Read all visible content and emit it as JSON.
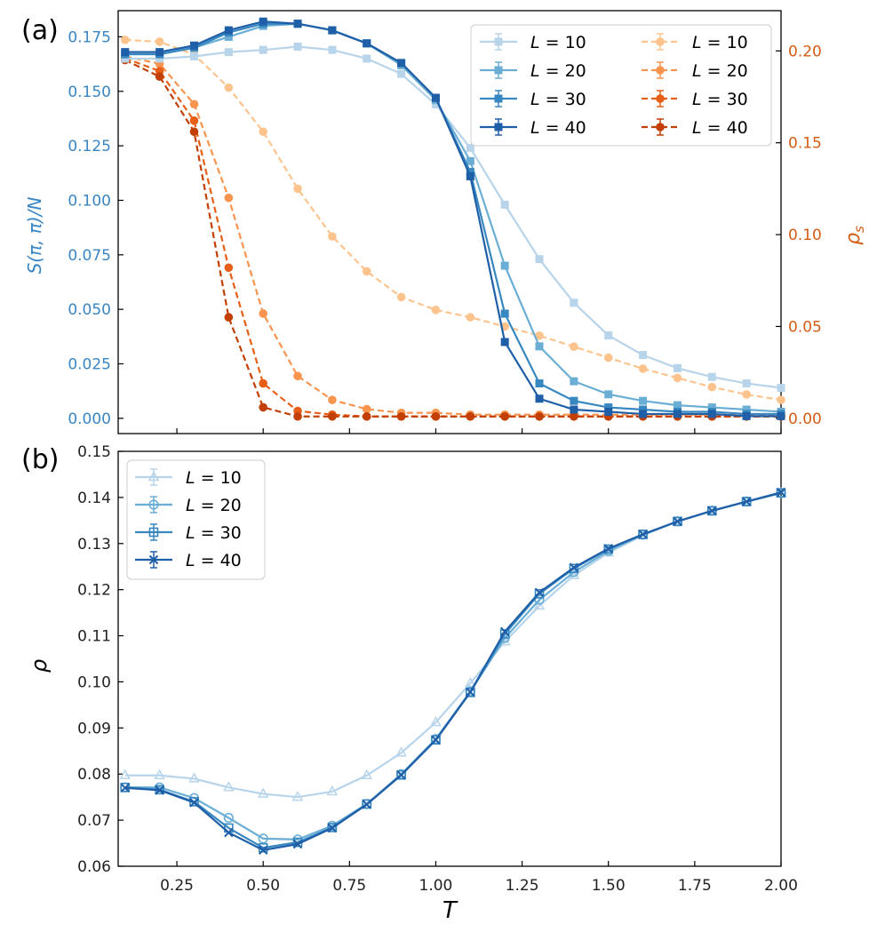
{
  "panel_labels": {
    "a": "(a)",
    "b": "(b)"
  },
  "colors": {
    "blue": [
      "#b7d4ea",
      "#6aaed6",
      "#3787c0",
      "#1f5fa8"
    ],
    "orange": [
      "#fdc38d",
      "#f9944f",
      "#e75f16",
      "#c23f06"
    ],
    "left_axis": "#3a86c4",
    "right_axis": "#d35d14"
  },
  "chart_data": [
    {
      "type": "line",
      "panel": "(a)",
      "xlim": [
        0.08,
        2.0
      ],
      "xticks": [
        0.25,
        0.5,
        0.75,
        1.0,
        1.25,
        1.5,
        1.75,
        2.0
      ],
      "left_axis": {
        "label": "S(π, π)/N",
        "ylim": [
          -0.007,
          0.187
        ],
        "ticks": [
          0.0,
          0.025,
          0.05,
          0.075,
          0.1,
          0.125,
          0.15,
          0.175
        ],
        "tick_labels": [
          "0.000",
          "0.025",
          "0.050",
          "0.075",
          "0.100",
          "0.125",
          "0.150",
          "0.175"
        ]
      },
      "right_axis": {
        "label": "ρ",
        "label_sub": "s",
        "ylim": [
          -0.0083,
          0.2219
        ],
        "ticks": [
          0.0,
          0.05,
          0.1,
          0.15,
          0.2
        ],
        "tick_labels": [
          "0.00",
          "0.05",
          "0.10",
          "0.15",
          "0.20"
        ]
      },
      "x": [
        0.1,
        0.2,
        0.3,
        0.4,
        0.5,
        0.6,
        0.7,
        0.8,
        0.9,
        1.0,
        1.1,
        1.2,
        1.3,
        1.4,
        1.5,
        1.6,
        1.7,
        1.8,
        1.9,
        2.0
      ],
      "legend": {
        "position": "top-right",
        "columns": 2
      },
      "series_left": [
        {
          "name": "L = 10",
          "L": "10",
          "values": [
            0.165,
            0.165,
            0.166,
            0.168,
            0.169,
            0.1705,
            0.169,
            0.165,
            0.158,
            0.144,
            0.124,
            0.098,
            0.073,
            0.053,
            0.038,
            0.029,
            0.023,
            0.019,
            0.016,
            0.014
          ]
        },
        {
          "name": "L = 20",
          "L": "20",
          "values": [
            0.167,
            0.167,
            0.17,
            0.175,
            0.18,
            0.181,
            0.178,
            0.172,
            0.162,
            0.146,
            0.118,
            0.07,
            0.033,
            0.017,
            0.011,
            0.008,
            0.006,
            0.005,
            0.004,
            0.003
          ]
        },
        {
          "name": "L = 30",
          "L": "30",
          "values": [
            0.167,
            0.167,
            0.17,
            0.177,
            0.181,
            0.181,
            0.178,
            0.172,
            0.163,
            0.147,
            0.113,
            0.048,
            0.016,
            0.008,
            0.005,
            0.004,
            0.003,
            0.003,
            0.002,
            0.002
          ]
        },
        {
          "name": "L = 40",
          "L": "40",
          "values": [
            0.168,
            0.168,
            0.171,
            0.178,
            0.182,
            0.181,
            0.178,
            0.172,
            0.163,
            0.147,
            0.111,
            0.035,
            0.009,
            0.004,
            0.003,
            0.002,
            0.002,
            0.002,
            0.001,
            0.001
          ]
        }
      ],
      "series_right": [
        {
          "name": "L = 10",
          "L": "10",
          "values": [
            0.206,
            0.205,
            0.198,
            0.18,
            0.156,
            0.125,
            0.099,
            0.08,
            0.066,
            0.059,
            0.055,
            0.05,
            0.045,
            0.039,
            0.033,
            0.027,
            0.022,
            0.017,
            0.013,
            0.01
          ]
        },
        {
          "name": "L = 20",
          "L": "20",
          "values": [
            0.197,
            0.193,
            0.171,
            0.12,
            0.057,
            0.023,
            0.01,
            0.005,
            0.003,
            0.003,
            0.002,
            0.002,
            0.002,
            0.002,
            0.002,
            0.002,
            0.002,
            0.002,
            0.002,
            0.002
          ]
        },
        {
          "name": "L = 30",
          "L": "30",
          "values": [
            0.196,
            0.189,
            0.162,
            0.082,
            0.019,
            0.004,
            0.002,
            0.001,
            0.001,
            0.001,
            0.001,
            0.001,
            0.001,
            0.001,
            0.001,
            0.001,
            0.001,
            0.001,
            0.001,
            0.001
          ]
        },
        {
          "name": "L = 40",
          "L": "40",
          "values": [
            0.195,
            0.186,
            0.156,
            0.055,
            0.006,
            0.001,
            0.001,
            0.001,
            0.001,
            0.001,
            0.001,
            0.001,
            0.001,
            0.001,
            0.001,
            0.001,
            0.001,
            0.001,
            0.001,
            0.001
          ]
        }
      ]
    },
    {
      "type": "line",
      "panel": "(b)",
      "xlim": [
        0.08,
        2.0
      ],
      "xticks": [
        0.25,
        0.5,
        0.75,
        1.0,
        1.25,
        1.5,
        1.75,
        2.0
      ],
      "xtick_labels": [
        "0.25",
        "0.50",
        "0.75",
        "1.00",
        "1.25",
        "1.50",
        "1.75",
        "2.00"
      ],
      "xlabel": "T",
      "ylabel": "ρ",
      "ylim": [
        0.06,
        0.15
      ],
      "yticks": [
        0.06,
        0.07,
        0.08,
        0.09,
        0.1,
        0.11,
        0.12,
        0.13,
        0.14,
        0.15
      ],
      "ytick_labels": [
        "0.06",
        "0.07",
        "0.08",
        "0.09",
        "0.10",
        "0.11",
        "0.12",
        "0.13",
        "0.14",
        "0.15"
      ],
      "legend": {
        "position": "top-left",
        "columns": 1
      },
      "x": [
        0.1,
        0.2,
        0.3,
        0.4,
        0.5,
        0.6,
        0.7,
        0.8,
        0.9,
        1.0,
        1.1,
        1.2,
        1.3,
        1.4,
        1.5,
        1.6,
        1.7,
        1.8,
        1.9,
        2.0
      ],
      "series": [
        {
          "name": "L = 10",
          "L": "10",
          "marker": "triangle",
          "values": [
            0.0797,
            0.0797,
            0.079,
            0.0771,
            0.0757,
            0.075,
            0.0762,
            0.0797,
            0.0846,
            0.0912,
            0.0997,
            0.1087,
            0.1165,
            0.1231,
            0.128,
            0.1318,
            0.1348,
            0.1371,
            0.1391,
            0.1409
          ]
        },
        {
          "name": "L = 20",
          "L": "20",
          "marker": "circle",
          "values": [
            0.0771,
            0.0771,
            0.0748,
            0.0705,
            0.066,
            0.0658,
            0.0688,
            0.0735,
            0.08,
            0.0876,
            0.0979,
            0.1095,
            0.1178,
            0.1238,
            0.1284,
            0.1319,
            0.1348,
            0.1371,
            0.1391,
            0.1409
          ]
        },
        {
          "name": "L = 30",
          "L": "30",
          "marker": "square",
          "values": [
            0.0771,
            0.0766,
            0.074,
            0.0683,
            0.064,
            0.0652,
            0.0684,
            0.0735,
            0.0798,
            0.0874,
            0.0977,
            0.1104,
            0.1191,
            0.1246,
            0.1288,
            0.132,
            0.1348,
            0.1371,
            0.1391,
            0.141
          ]
        },
        {
          "name": "L = 40",
          "L": "40",
          "marker": "x",
          "values": [
            0.077,
            0.0765,
            0.0738,
            0.0673,
            0.0635,
            0.0648,
            0.0683,
            0.0734,
            0.0798,
            0.0874,
            0.0978,
            0.1109,
            0.1194,
            0.1248,
            0.1289,
            0.132,
            0.1348,
            0.1371,
            0.1391,
            0.1411
          ]
        }
      ]
    }
  ]
}
